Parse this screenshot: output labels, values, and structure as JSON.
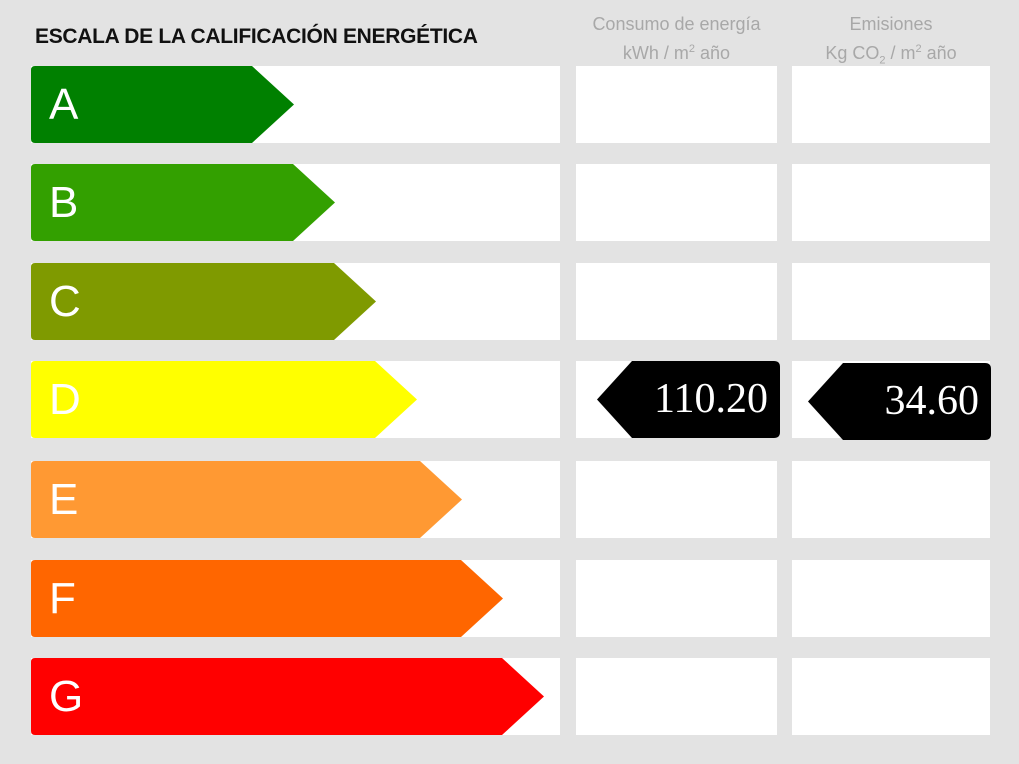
{
  "title": "ESCALA DE LA CALIFICACIÓN ENERGÉTICA",
  "columns": {
    "consumption": {
      "line1": "Consumo de energía",
      "unit_pre": "kWh / m",
      "unit_sup": "2",
      "unit_post": " año"
    },
    "emissions": {
      "line1": "Emisiones",
      "unit_pre": "Kg CO",
      "unit_sub": "2",
      "unit_mid": " / m",
      "unit_sup": "2",
      "unit_post": " año"
    }
  },
  "ratings": [
    {
      "letter": "A",
      "color": "#008000"
    },
    {
      "letter": "B",
      "color": "#33a000"
    },
    {
      "letter": "C",
      "color": "#7f9a00"
    },
    {
      "letter": "D",
      "color": "#ffff00"
    },
    {
      "letter": "E",
      "color": "#ff9933"
    },
    {
      "letter": "F",
      "color": "#ff6600"
    },
    {
      "letter": "G",
      "color": "#ff0000"
    }
  ],
  "result": {
    "rating": "D",
    "consumption_value": "110.20",
    "emissions_value": "34.60",
    "tag_color": "#000000"
  }
}
